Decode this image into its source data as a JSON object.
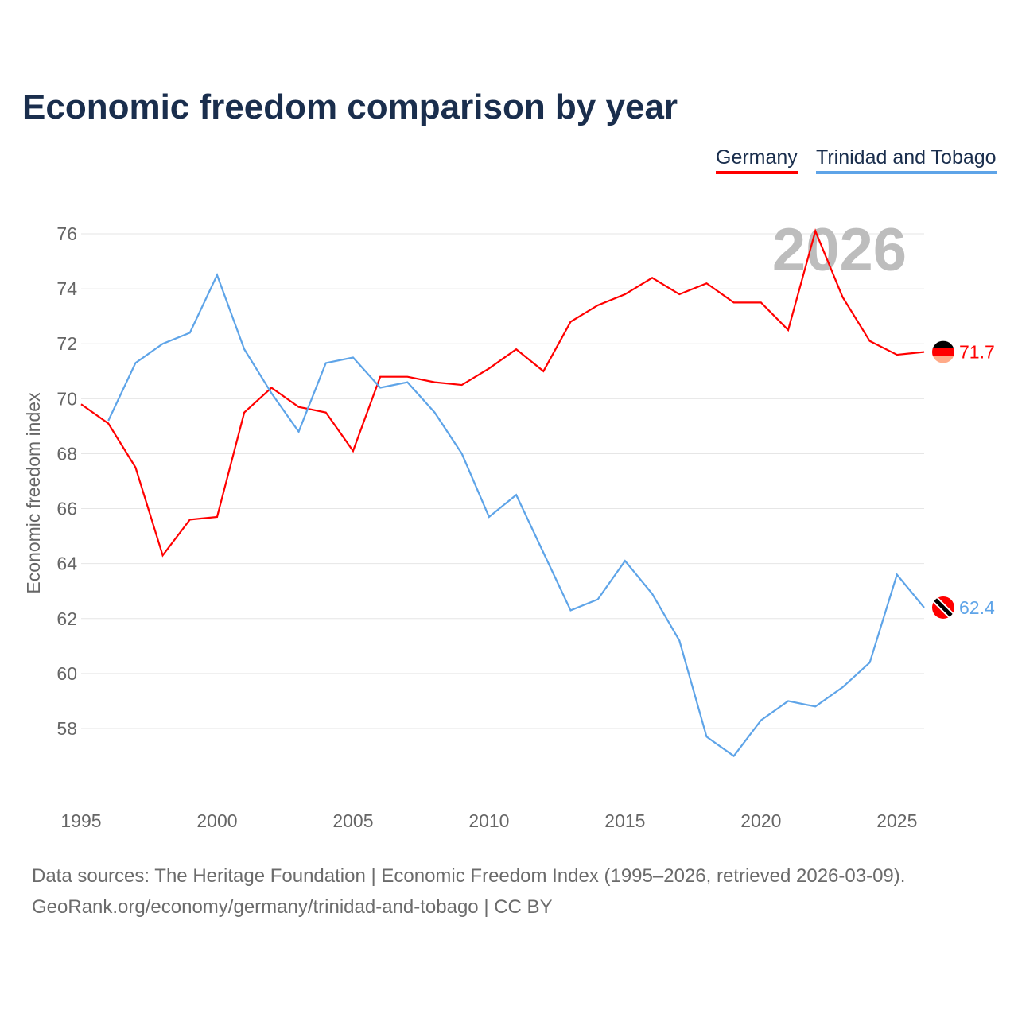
{
  "chart_data": {
    "type": "line",
    "title": "Economic freedom comparison by year",
    "xlabel": "",
    "ylabel": "Economic freedom index",
    "xlim": [
      1995,
      2026
    ],
    "ylim": [
      56,
      77
    ],
    "yticks": [
      58,
      60,
      62,
      64,
      66,
      68,
      70,
      72,
      74,
      76
    ],
    "xticks": [
      1995,
      2000,
      2005,
      2010,
      2015,
      2020,
      2025
    ],
    "grid": true,
    "legend_position": "top-right",
    "watermark_year": "2026",
    "series": [
      {
        "name": "Germany",
        "color": "#ff0000",
        "end_label": "71.7",
        "x": [
          1995,
          1996,
          1997,
          1998,
          1999,
          2000,
          2001,
          2002,
          2003,
          2004,
          2005,
          2006,
          2007,
          2008,
          2009,
          2010,
          2011,
          2012,
          2013,
          2014,
          2015,
          2016,
          2017,
          2018,
          2019,
          2020,
          2021,
          2022,
          2023,
          2024,
          2025,
          2026
        ],
        "values": [
          69.8,
          69.1,
          67.5,
          64.3,
          65.6,
          65.7,
          69.5,
          70.4,
          69.7,
          69.5,
          68.1,
          70.8,
          70.8,
          70.6,
          70.5,
          71.1,
          71.8,
          71.0,
          72.8,
          73.4,
          73.8,
          74.4,
          73.8,
          74.2,
          73.5,
          73.5,
          72.5,
          76.1,
          73.7,
          72.1,
          71.6,
          71.7
        ]
      },
      {
        "name": "Trinidad and Tobago",
        "color": "#5ea4e8",
        "end_label": "62.4",
        "x": [
          1996,
          1997,
          1998,
          1999,
          2000,
          2001,
          2002,
          2003,
          2004,
          2005,
          2006,
          2007,
          2008,
          2009,
          2010,
          2011,
          2012,
          2013,
          2014,
          2015,
          2016,
          2017,
          2018,
          2019,
          2020,
          2021,
          2022,
          2023,
          2024,
          2025,
          2026
        ],
        "values": [
          69.2,
          71.3,
          72.0,
          72.4,
          74.5,
          71.8,
          70.2,
          68.8,
          71.3,
          71.5,
          70.4,
          70.6,
          69.5,
          68.0,
          65.7,
          66.5,
          64.4,
          62.3,
          62.7,
          64.1,
          62.9,
          61.2,
          57.7,
          57.0,
          58.3,
          59.0,
          58.8,
          59.5,
          60.4,
          63.6,
          62.4
        ]
      }
    ]
  },
  "footer": {
    "sources": "Data sources: The Heritage Foundation | Economic Freedom Index (1995–2026, retrieved 2026-03-09).",
    "link": "GeoRank.org/economy/germany/trinidad-and-tobago | CC BY"
  }
}
